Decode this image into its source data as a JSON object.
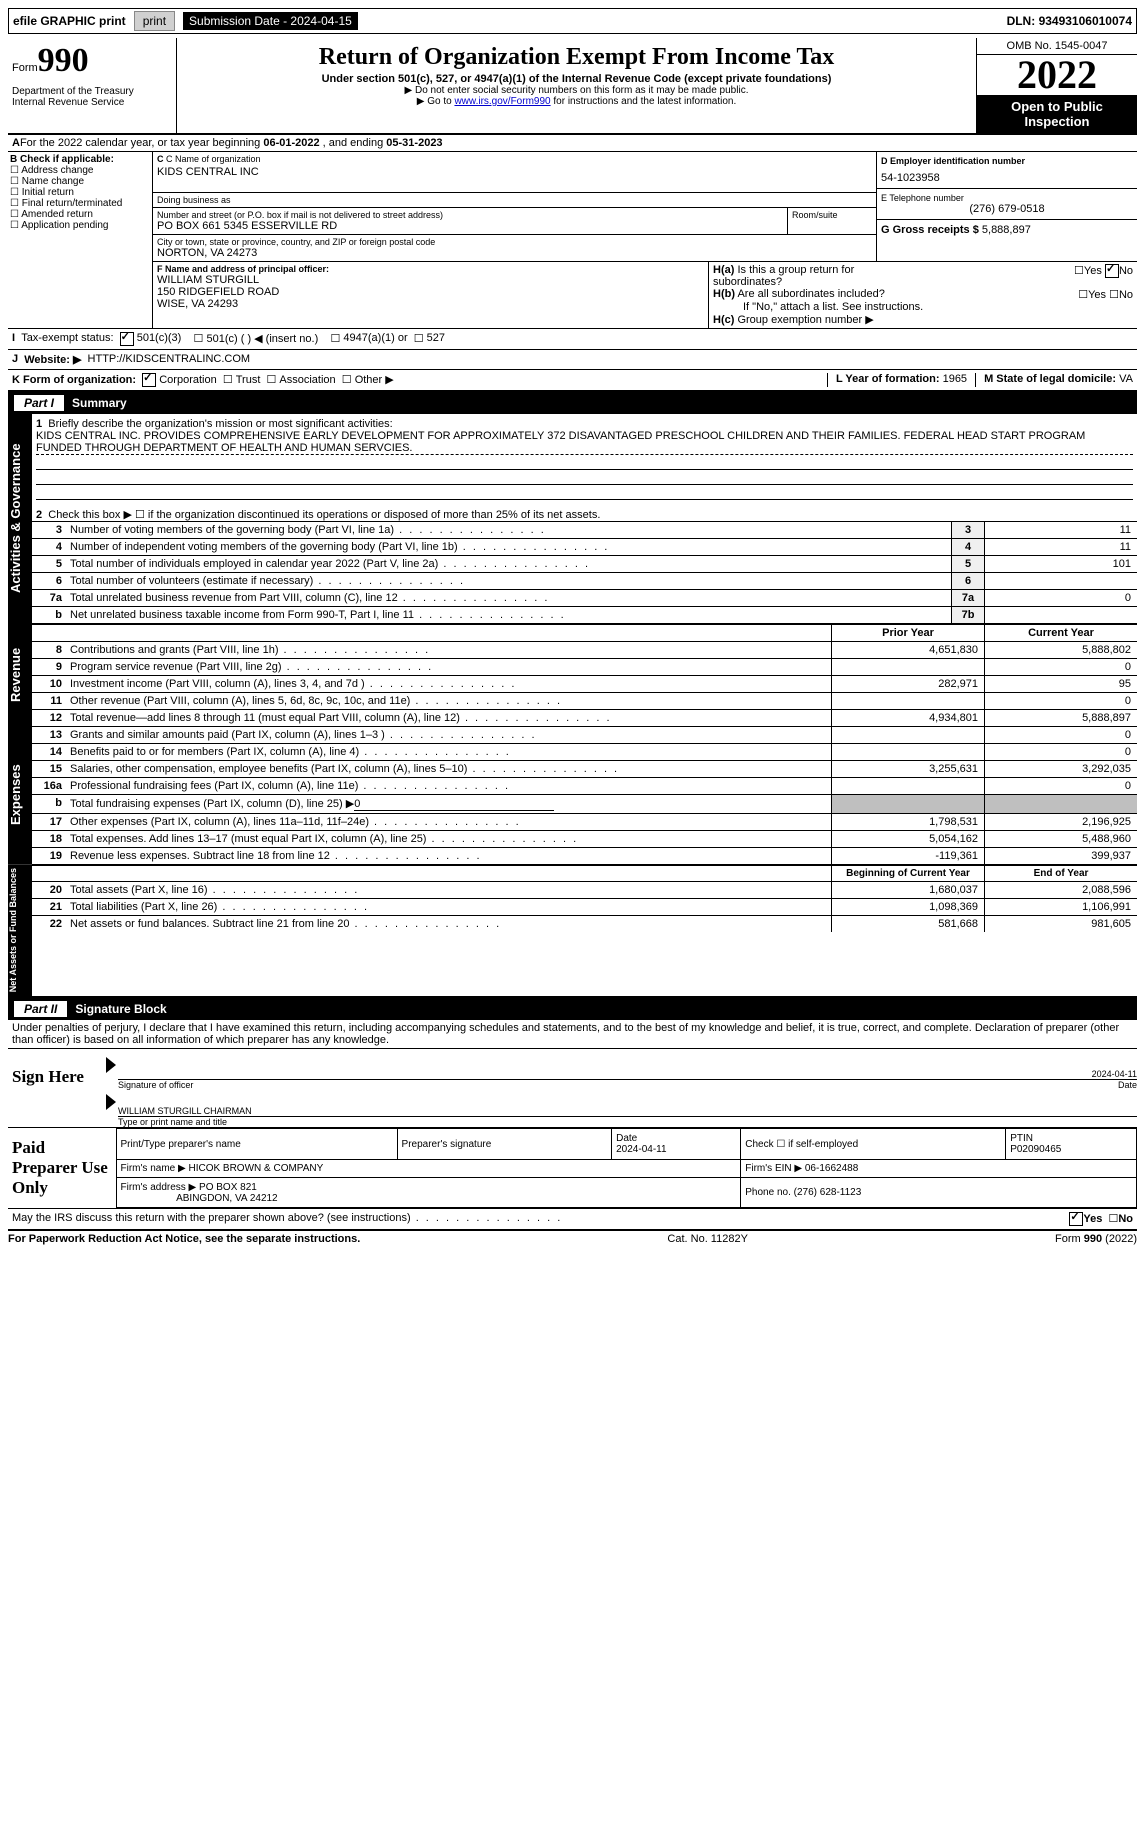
{
  "topbar": {
    "efile": "efile GRAPHIC print",
    "subdate_lbl": "Submission Date - ",
    "subdate": "2024-04-15",
    "dln_lbl": "DLN: ",
    "dln": "93493106010074"
  },
  "header": {
    "form_pre": "Form",
    "form_num": "990",
    "dept": "Department of the Treasury",
    "irs": "Internal Revenue Service",
    "title": "Return of Organization Exempt From Income Tax",
    "sub": "Under section 501(c), 527, or 4947(a)(1) of the Internal Revenue Code (except private foundations)",
    "note1": "▶ Do not enter social security numbers on this form as it may be made public.",
    "note2_pre": "▶ Go to ",
    "note2_link": "www.irs.gov/Form990",
    "note2_post": " for instructions and the latest information.",
    "omb": "OMB No. 1545-0047",
    "year": "2022",
    "otp": "Open to Public Inspection"
  },
  "A": {
    "text": "For the 2022 calendar year, or tax year beginning ",
    "beg": "06-01-2022",
    "mid": " , and ending ",
    "end": "05-31-2023"
  },
  "B": {
    "hdr": "B Check if applicable:",
    "items": [
      "Address change",
      "Name change",
      "Initial return",
      "Final return/terminated",
      "Amended return",
      "Application pending"
    ]
  },
  "C": {
    "name_lbl": "C Name of organization",
    "name": "KIDS CENTRAL INC",
    "dba_lbl": "Doing business as",
    "dba": "",
    "addr_lbl": "Number and street (or P.O. box if mail is not delivered to street address)",
    "room_lbl": "Room/suite",
    "addr": "PO BOX 661 5345 ESSERVILLE RD",
    "city_lbl": "City or town, state or province, country, and ZIP or foreign postal code",
    "city": "NORTON, VA  24273"
  },
  "D": {
    "lbl": "D Employer identification number",
    "val": "54-1023958"
  },
  "E": {
    "lbl": "E Telephone number",
    "val": "(276) 679-0518"
  },
  "G": {
    "lbl": "G Gross receipts $ ",
    "val": "5,888,897"
  },
  "F": {
    "lbl": "F Name and address of principal officer:",
    "name": "WILLIAM STURGILL",
    "addr1": "150 RIDGEFIELD ROAD",
    "addr2": "WISE, VA  24293"
  },
  "H": {
    "a": "Is this a group return for subordinates?",
    "b": "Are all subordinates included?",
    "c": "Group exemption number ▶",
    "note": "If \"No,\" attach a list. See instructions.",
    "yes": "Yes",
    "no": "No",
    "ha_no": true
  },
  "I": {
    "lbl": "Tax-exempt status:",
    "c3": "501(c)(3)",
    "c": "501(c) (   ) ◀ (insert no.)",
    "a1": "4947(a)(1) or",
    "s527": "527"
  },
  "J": {
    "lbl": "Website: ▶",
    "val": "HTTP://KIDSCENTRALINC.COM"
  },
  "K": {
    "lbl": "K Form of organization:",
    "opts": [
      "Corporation",
      "Trust",
      "Association",
      "Other ▶"
    ],
    "corp": true
  },
  "L": {
    "lbl": "L Year of formation: ",
    "val": "1965"
  },
  "M": {
    "lbl": "M State of legal domicile: ",
    "val": "VA"
  },
  "part1": {
    "title": "Summary",
    "tag": "Part I"
  },
  "tabs": {
    "ag": "Activities & Governance",
    "rev": "Revenue",
    "exp": "Expenses",
    "na": "Net Assets or Fund Balances"
  },
  "s1": {
    "q": "Briefly describe the organization's mission or most significant activities:",
    "a": "KIDS CENTRAL INC. PROVIDES COMPREHENSIVE EARLY DEVELOPMENT FOR APPROXIMATELY 372 DISAVANTAGED PRESCHOOL CHILDREN AND THEIR FAMILIES. FEDERAL HEAD START PROGRAM FUNDED THROUGH DEPARTMENT OF HEALTH AND HUMAN SERVCIES."
  },
  "s2": "Check this box ▶ ☐ if the organization discontinued its operations or disposed of more than 25% of its net assets.",
  "lines_ag": [
    {
      "n": "3",
      "t": "Number of voting members of the governing body (Part VI, line 1a)",
      "bn": "3",
      "v": "11"
    },
    {
      "n": "4",
      "t": "Number of independent voting members of the governing body (Part VI, line 1b)",
      "bn": "4",
      "v": "11"
    },
    {
      "n": "5",
      "t": "Total number of individuals employed in calendar year 2022 (Part V, line 2a)",
      "bn": "5",
      "v": "101"
    },
    {
      "n": "6",
      "t": "Total number of volunteers (estimate if necessary)",
      "bn": "6",
      "v": ""
    },
    {
      "n": "7a",
      "t": "Total unrelated business revenue from Part VIII, column (C), line 12",
      "bn": "7a",
      "v": "0"
    },
    {
      "n": "b",
      "t": "Net unrelated business taxable income from Form 990-T, Part I, line 11",
      "bn": "7b",
      "v": ""
    }
  ],
  "colhdr": {
    "py": "Prior Year",
    "cy": "Current Year",
    "bcy": "Beginning of Current Year",
    "eoy": "End of Year"
  },
  "lines_rev": [
    {
      "n": "8",
      "t": "Contributions and grants (Part VIII, line 1h)",
      "py": "4,651,830",
      "cy": "5,888,802"
    },
    {
      "n": "9",
      "t": "Program service revenue (Part VIII, line 2g)",
      "py": "",
      "cy": "0"
    },
    {
      "n": "10",
      "t": "Investment income (Part VIII, column (A), lines 3, 4, and 7d )",
      "py": "282,971",
      "cy": "95"
    },
    {
      "n": "11",
      "t": "Other revenue (Part VIII, column (A), lines 5, 6d, 8c, 9c, 10c, and 11e)",
      "py": "",
      "cy": "0"
    },
    {
      "n": "12",
      "t": "Total revenue—add lines 8 through 11 (must equal Part VIII, column (A), line 12)",
      "py": "4,934,801",
      "cy": "5,888,897"
    }
  ],
  "lines_exp": [
    {
      "n": "13",
      "t": "Grants and similar amounts paid (Part IX, column (A), lines 1–3 )",
      "py": "",
      "cy": "0"
    },
    {
      "n": "14",
      "t": "Benefits paid to or for members (Part IX, column (A), line 4)",
      "py": "",
      "cy": "0"
    },
    {
      "n": "15",
      "t": "Salaries, other compensation, employee benefits (Part IX, column (A), lines 5–10)",
      "py": "3,255,631",
      "cy": "3,292,035"
    },
    {
      "n": "16a",
      "t": "Professional fundraising fees (Part IX, column (A), line 11e)",
      "py": "",
      "cy": "0"
    },
    {
      "n": "b",
      "t": "Total fundraising expenses (Part IX, column (D), line 25) ▶",
      "py": "grey",
      "cy": "grey",
      "inline": "0"
    },
    {
      "n": "17",
      "t": "Other expenses (Part IX, column (A), lines 11a–11d, 11f–24e)",
      "py": "1,798,531",
      "cy": "2,196,925"
    },
    {
      "n": "18",
      "t": "Total expenses. Add lines 13–17 (must equal Part IX, column (A), line 25)",
      "py": "5,054,162",
      "cy": "5,488,960"
    },
    {
      "n": "19",
      "t": "Revenue less expenses. Subtract line 18 from line 12",
      "py": "-119,361",
      "cy": "399,937"
    }
  ],
  "lines_na": [
    {
      "n": "20",
      "t": "Total assets (Part X, line 16)",
      "py": "1,680,037",
      "cy": "2,088,596"
    },
    {
      "n": "21",
      "t": "Total liabilities (Part X, line 26)",
      "py": "1,098,369",
      "cy": "1,106,991"
    },
    {
      "n": "22",
      "t": "Net assets or fund balances. Subtract line 21 from line 20",
      "py": "581,668",
      "cy": "981,605"
    }
  ],
  "part2": {
    "tag": "Part II",
    "title": "Signature Block"
  },
  "penalty": "Under penalties of perjury, I declare that I have examined this return, including accompanying schedules and statements, and to the best of my knowledge and belief, it is true, correct, and complete. Declaration of preparer (other than officer) is based on all information of which preparer has any knowledge.",
  "sign": {
    "here": "Sign Here",
    "sig_lbl": "Signature of officer",
    "date_lbl": "Date",
    "date": "2024-04-11",
    "name": "WILLIAM STURGILL CHAIRMAN",
    "name_lbl": "Type or print name and title"
  },
  "prep": {
    "title": "Paid Preparer Use Only",
    "pn_lbl": "Print/Type preparer's name",
    "ps_lbl": "Preparer's signature",
    "date_lbl": "Date",
    "date": "2024-04-11",
    "chk_lbl": "Check ☐ if self-employed",
    "ptin_lbl": "PTIN",
    "ptin": "P02090465",
    "firm_lbl": "Firm's name   ▶ ",
    "firm": "HICOK BROWN & COMPANY",
    "ein_lbl": "Firm's EIN ▶ ",
    "ein": "06-1662488",
    "addr_lbl": "Firm's address ▶ ",
    "addr": "PO BOX 821",
    "addr2": "ABINGDON, VA  24212",
    "ph_lbl": "Phone no. ",
    "ph": "(276) 628-1123"
  },
  "discuss": {
    "q": "May the IRS discuss this return with the preparer shown above? (see instructions)",
    "yes": "Yes",
    "no": "No"
  },
  "footer": {
    "l": "For Paperwork Reduction Act Notice, see the separate instructions.",
    "m": "Cat. No. 11282Y",
    "r": "Form 990 (2022)"
  }
}
